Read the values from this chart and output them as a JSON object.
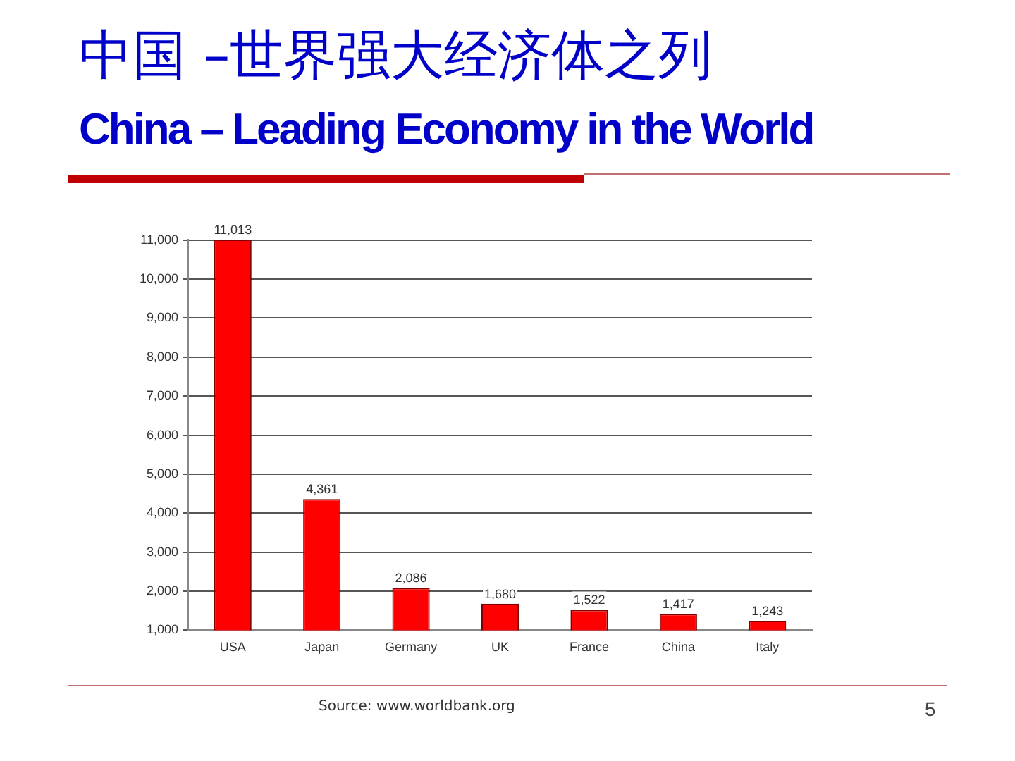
{
  "chart_data": {
    "type": "bar",
    "title": "中国 –世界强大经济体之列",
    "subtitle": "China – Leading Economy in the World",
    "categories": [
      "USA",
      "Japan",
      "Germany",
      "UK",
      "France",
      "China",
      "Italy"
    ],
    "values": [
      11013,
      4361,
      2086,
      1680,
      1522,
      1417,
      1243
    ],
    "color": "#ff0000",
    "value_labels": [
      "11,013",
      "4,361",
      "2,086",
      "1,680",
      "1,522",
      "1,417",
      "1,243"
    ],
    "ylim": [
      1000,
      11013
    ],
    "yticks": [
      {
        "value": 1000,
        "label": "1,000"
      },
      {
        "value": 2000,
        "label": "2,000"
      },
      {
        "value": 3000,
        "label": "3,000"
      },
      {
        "value": 4000,
        "label": "4,000"
      },
      {
        "value": 5000,
        "label": "5,000"
      },
      {
        "value": 6000,
        "label": "6,000"
      },
      {
        "value": 7000,
        "label": "7,000"
      },
      {
        "value": 8000,
        "label": "8,000"
      },
      {
        "value": 9000,
        "label": "9,000"
      },
      {
        "value": 10000,
        "label": "10,000"
      },
      {
        "value": 11000,
        "label": "11,000"
      }
    ],
    "grid": "y",
    "legend": false,
    "annotations": [
      "Source: www.worldbank.org",
      "5"
    ]
  }
}
